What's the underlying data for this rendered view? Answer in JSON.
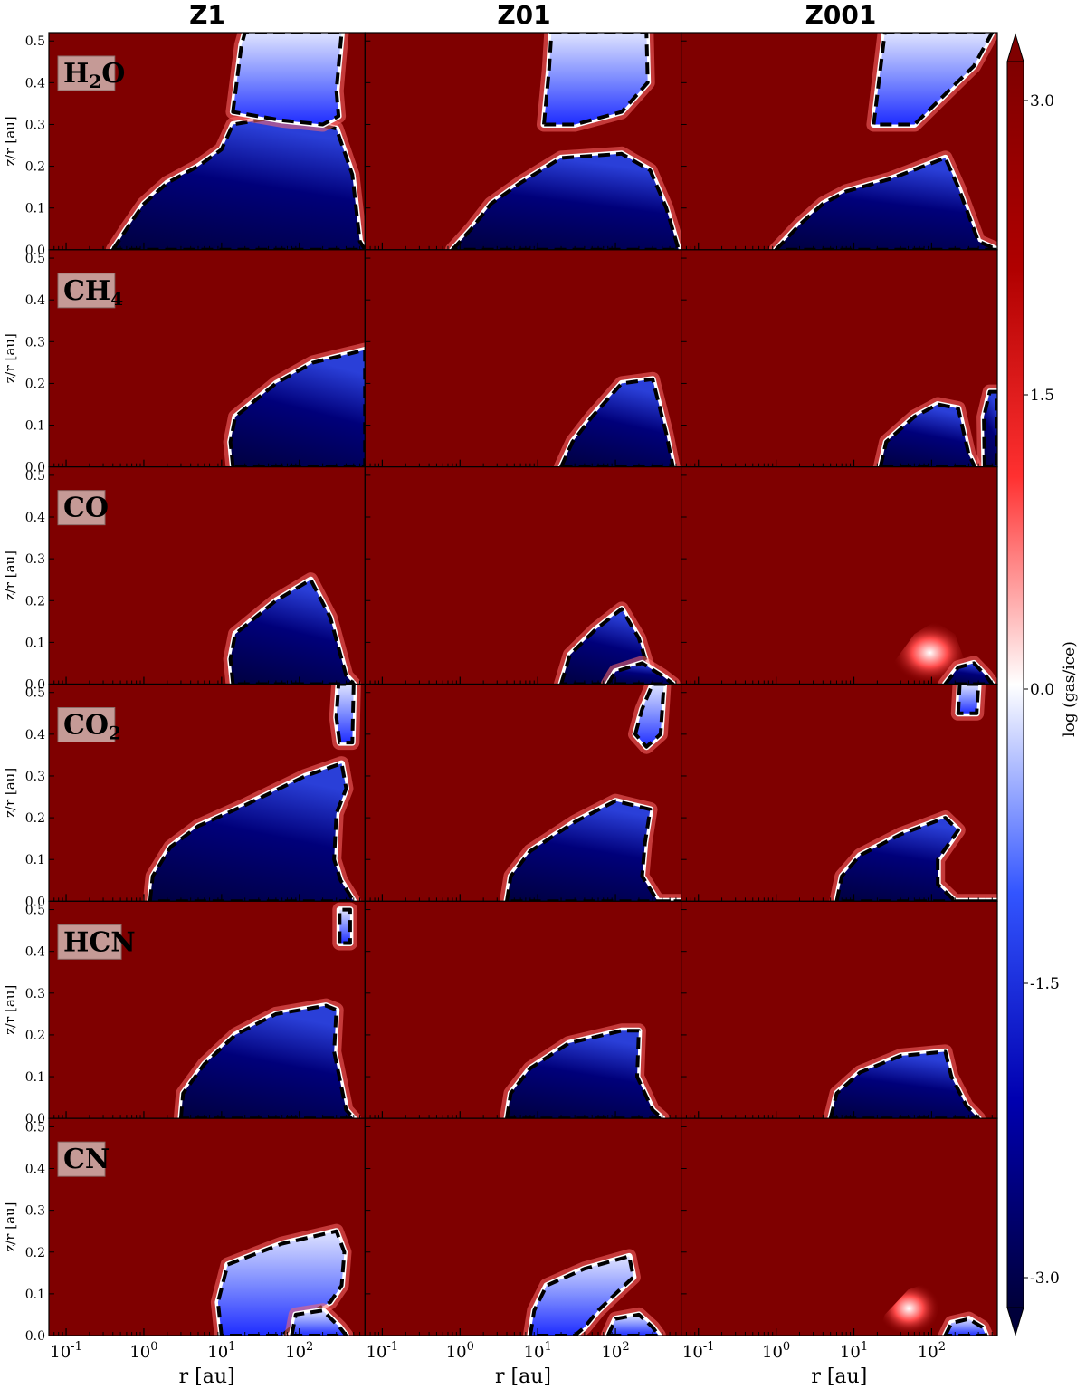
{
  "chart_data": {
    "type": "heatmap",
    "columns": [
      "Z1",
      "Z01",
      "Z001"
    ],
    "rows": [
      {
        "species": "H",
        "sub": "2",
        "tail": "O"
      },
      {
        "species": "CH",
        "sub": "4",
        "tail": ""
      },
      {
        "species": "CO",
        "sub": "",
        "tail": ""
      },
      {
        "species": "CO",
        "sub": "2",
        "tail": ""
      },
      {
        "species": "HCN",
        "sub": "",
        "tail": ""
      },
      {
        "species": "CN",
        "sub": "",
        "tail": ""
      }
    ],
    "xlabel": "r [au]",
    "ylabel": "z/r [au]",
    "x_scale": "log",
    "xlim": [
      0.06,
      700
    ],
    "x_ticks": [
      {
        "value": 0.1,
        "base": "10",
        "exp": "-1"
      },
      {
        "value": 1,
        "base": "10",
        "exp": "0"
      },
      {
        "value": 10,
        "base": "10",
        "exp": "1"
      },
      {
        "value": 100,
        "base": "10",
        "exp": "2"
      }
    ],
    "ylim": [
      0,
      0.52
    ],
    "y_ticks": [
      "0.0",
      "0.1",
      "0.2",
      "0.3",
      "0.4",
      "0.5"
    ],
    "colorbar": {
      "label": "log (gas/ice)",
      "min": -3.0,
      "max": 3.0,
      "ticks": [
        "3.0",
        "1.5",
        "0.0",
        "-1.5",
        "-3.0"
      ],
      "colors": [
        "#00003a",
        "#0000b0",
        "#3355ff",
        "#ffffff",
        "#ff3030",
        "#b00000",
        "#7f0000"
      ]
    },
    "background_color": "#7f0000",
    "boundary_contour_value": 0.0
  }
}
